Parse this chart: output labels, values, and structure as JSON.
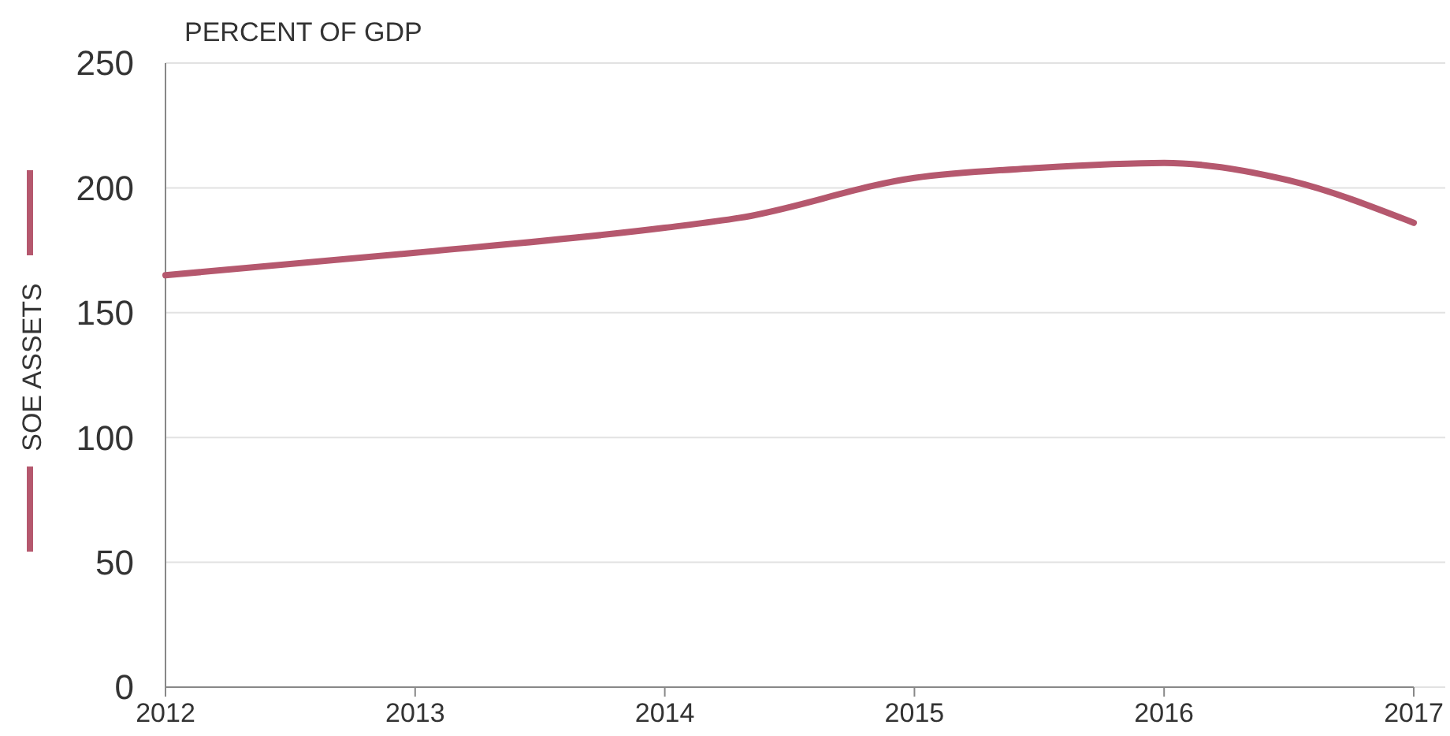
{
  "chart_data": {
    "type": "line",
    "ylabel": "PERCENT OF GDP",
    "x": [
      2012,
      2013,
      2014,
      2014.3,
      2015,
      2015.5,
      2016,
      2016.5,
      2017
    ],
    "series": [
      {
        "name": "SOE ASSETS",
        "color": "#b5586e",
        "values": [
          165,
          174,
          184,
          188,
          204,
          208,
          210,
          203,
          186
        ]
      }
    ],
    "xlim": [
      2012,
      2017
    ],
    "xticks": [
      2012,
      2013,
      2014,
      2015,
      2016,
      2017
    ],
    "ylim": [
      0,
      250
    ],
    "yticks": [
      0,
      50,
      100,
      150,
      200,
      250
    ],
    "grid": "y",
    "legend": "left",
    "marker": "none",
    "line_style": "solid"
  }
}
